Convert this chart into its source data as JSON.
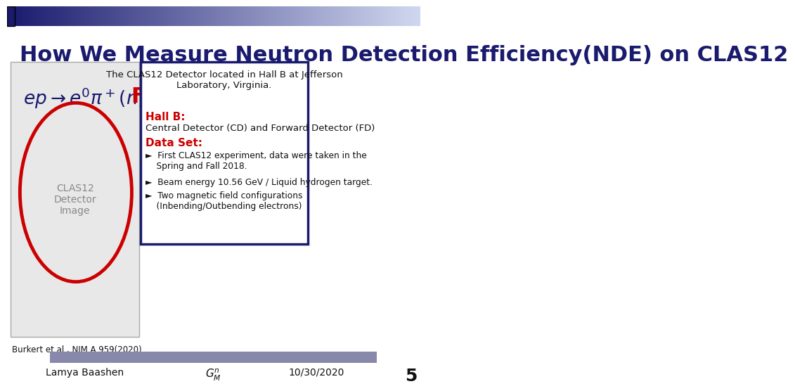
{
  "title": "How We Measure Neutron Detection Efficiency(NDE) on CLAS12",
  "title_color": "#1a1a6e",
  "title_fontsize": 22,
  "header_bar_color_left": "#1a1a6e",
  "header_bar_color_right": "#d0d8f0",
  "footer_bar_color": "#8888aa",
  "formula_text": "e p → e' π⁺(n)",
  "fd_label": "FD",
  "fd_color": "#cc0000",
  "box_title": "The CLAS12 Detector located in Hall B at Jefferson\nLaboratory, Virginia.",
  "box_hall_b": "Hall B:",
  "box_hall_b_color": "#cc0000",
  "box_cd_fd": "Central Detector (CD) and Forward Detector (FD)",
  "box_dataset": "Data Set:",
  "box_dataset_color": "#cc0000",
  "bullet1": "First CLAS12 experiment, data were taken in the\n    Spring and Fall 2018.",
  "bullet2": "Beam energy 10.56 GeV / Liquid hydrogen target.",
  "bullet3": "Two magnetic field configurations\n    (Inbending/Outbending electrons)",
  "box_border_color": "#1a1a6e",
  "footer_name": "Lamya Baashen",
  "footer_formula": "$G^n_M$",
  "footer_date": "10/30/2020",
  "footer_page": "5",
  "citation": "Burkert et al., NIM A 959(2020)",
  "bg_color": "#ffffff",
  "text_color": "#000000",
  "image_placeholder": true
}
